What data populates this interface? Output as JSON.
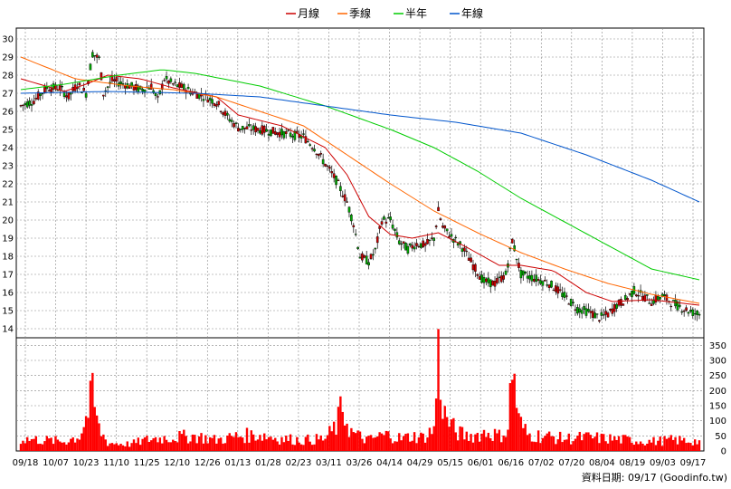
{
  "chart_data": {
    "type": "candlestick",
    "legend": {
      "placement": "top-center",
      "items": [
        {
          "label": "月線",
          "color": "#cc0000"
        },
        {
          "label": "季線",
          "color": "#ff6600"
        },
        {
          "label": "半年",
          "color": "#00cc00"
        },
        {
          "label": "年線",
          "color": "#0055cc"
        }
      ]
    },
    "price_axis": {
      "ticks": [
        14,
        15,
        16,
        17,
        18,
        19,
        20,
        21,
        22,
        23,
        24,
        25,
        26,
        27,
        28,
        29,
        30
      ],
      "ylim": [
        13.5,
        30.6
      ]
    },
    "volume_axis": {
      "ticks": [
        0,
        50,
        100,
        150,
        200,
        250,
        300,
        350
      ],
      "ylim": [
        0,
        375
      ]
    },
    "x_ticks": [
      "09/18",
      "10/07",
      "10/23",
      "11/10",
      "11/25",
      "12/10",
      "12/26",
      "01/13",
      "01/28",
      "02/23",
      "03/11",
      "03/26",
      "04/14",
      "04/29",
      "05/15",
      "06/01",
      "06/16",
      "07/02",
      "07/20",
      "08/04",
      "08/19",
      "09/03",
      "09/17"
    ],
    "grid": true,
    "colors": {
      "up": "#cc0000",
      "down": "#00aa00",
      "volume": "#ff0000",
      "grid": "#888888"
    },
    "price_anchors": [
      [
        0,
        26.3
      ],
      [
        6,
        26.6
      ],
      [
        12,
        27.3
      ],
      [
        18,
        27.3
      ],
      [
        22,
        26.8
      ],
      [
        26,
        27.5
      ],
      [
        30,
        27.0
      ],
      [
        33,
        29.2
      ],
      [
        36,
        28.9
      ],
      [
        38,
        27.0
      ],
      [
        42,
        27.7
      ],
      [
        48,
        27.5
      ],
      [
        55,
        27.2
      ],
      [
        60,
        27.4
      ],
      [
        63,
        26.6
      ],
      [
        66,
        27.8
      ],
      [
        70,
        27.5
      ],
      [
        75,
        27.3
      ],
      [
        80,
        27.0
      ],
      [
        85,
        26.8
      ],
      [
        90,
        26.5
      ],
      [
        95,
        25.7
      ],
      [
        100,
        25.1
      ],
      [
        110,
        25.0
      ],
      [
        120,
        24.8
      ],
      [
        130,
        24.6
      ],
      [
        135,
        24.0
      ],
      [
        140,
        23.1
      ],
      [
        145,
        22.2
      ],
      [
        150,
        21.0
      ],
      [
        153,
        19.8
      ],
      [
        156,
        18.0
      ],
      [
        160,
        17.7
      ],
      [
        163,
        18.3
      ],
      [
        166,
        20.0
      ],
      [
        170,
        20.0
      ],
      [
        174,
        18.8
      ],
      [
        178,
        18.4
      ],
      [
        182,
        18.7
      ],
      [
        186,
        18.6
      ],
      [
        190,
        19.0
      ],
      [
        192,
        20.5
      ],
      [
        194,
        19.6
      ],
      [
        198,
        19.1
      ],
      [
        203,
        18.5
      ],
      [
        208,
        17.5
      ],
      [
        213,
        16.6
      ],
      [
        218,
        16.5
      ],
      [
        223,
        17.0
      ],
      [
        226,
        18.9
      ],
      [
        230,
        17.0
      ],
      [
        236,
        16.8
      ],
      [
        243,
        16.5
      ],
      [
        250,
        15.8
      ],
      [
        256,
        15.1
      ],
      [
        262,
        14.9
      ],
      [
        266,
        14.6
      ],
      [
        270,
        14.8
      ],
      [
        274,
        15.3
      ],
      [
        278,
        15.6
      ],
      [
        282,
        16.1
      ],
      [
        286,
        15.8
      ],
      [
        290,
        15.5
      ],
      [
        295,
        15.8
      ],
      [
        300,
        15.4
      ],
      [
        305,
        15.1
      ],
      [
        309,
        14.9
      ],
      [
        312,
        14.8
      ]
    ],
    "volume_anchors": [
      [
        0,
        45
      ],
      [
        10,
        40
      ],
      [
        20,
        35
      ],
      [
        27,
        55
      ],
      [
        30,
        120
      ],
      [
        33,
        200
      ],
      [
        36,
        80
      ],
      [
        40,
        30
      ],
      [
        50,
        25
      ],
      [
        60,
        45
      ],
      [
        70,
        50
      ],
      [
        80,
        55
      ],
      [
        90,
        40
      ],
      [
        100,
        55
      ],
      [
        110,
        60
      ],
      [
        120,
        45
      ],
      [
        130,
        40
      ],
      [
        140,
        45
      ],
      [
        145,
        90
      ],
      [
        148,
        160
      ],
      [
        150,
        110
      ],
      [
        152,
        70
      ],
      [
        155,
        55
      ],
      [
        160,
        40
      ],
      [
        165,
        55
      ],
      [
        170,
        60
      ],
      [
        175,
        45
      ],
      [
        180,
        55
      ],
      [
        185,
        50
      ],
      [
        190,
        80
      ],
      [
        192,
        350
      ],
      [
        193,
        250
      ],
      [
        195,
        130
      ],
      [
        200,
        70
      ],
      [
        205,
        55
      ],
      [
        210,
        60
      ],
      [
        215,
        70
      ],
      [
        220,
        55
      ],
      [
        224,
        80
      ],
      [
        226,
        310
      ],
      [
        227,
        260
      ],
      [
        229,
        110
      ],
      [
        233,
        60
      ],
      [
        240,
        55
      ],
      [
        250,
        45
      ],
      [
        260,
        50
      ],
      [
        270,
        45
      ],
      [
        280,
        40
      ],
      [
        290,
        35
      ],
      [
        300,
        40
      ],
      [
        312,
        35
      ]
    ],
    "monthly_ma": [
      [
        0,
        27.8
      ],
      [
        20,
        27.1
      ],
      [
        30,
        27.5
      ],
      [
        40,
        28.0
      ],
      [
        55,
        27.8
      ],
      [
        70,
        27.3
      ],
      [
        90,
        26.8
      ],
      [
        100,
        25.8
      ],
      [
        120,
        25.2
      ],
      [
        140,
        24.0
      ],
      [
        150,
        22.5
      ],
      [
        160,
        20.2
      ],
      [
        170,
        19.2
      ],
      [
        180,
        19.0
      ],
      [
        192,
        19.3
      ],
      [
        205,
        18.5
      ],
      [
        220,
        17.5
      ],
      [
        230,
        17.5
      ],
      [
        245,
        17.2
      ],
      [
        260,
        16.0
      ],
      [
        272,
        15.5
      ],
      [
        290,
        15.6
      ],
      [
        312,
        15.3
      ]
    ],
    "quarterly_ma": [
      [
        0,
        29.0
      ],
      [
        25,
        27.8
      ],
      [
        50,
        27.4
      ],
      [
        70,
        27.2
      ],
      [
        90,
        26.8
      ],
      [
        110,
        26.0
      ],
      [
        130,
        25.2
      ],
      [
        150,
        23.6
      ],
      [
        170,
        22.0
      ],
      [
        190,
        20.5
      ],
      [
        210,
        19.3
      ],
      [
        230,
        18.2
      ],
      [
        250,
        17.3
      ],
      [
        270,
        16.5
      ],
      [
        290,
        15.9
      ],
      [
        312,
        15.4
      ]
    ],
    "halfyear_ma": [
      [
        0,
        27.2
      ],
      [
        20,
        27.5
      ],
      [
        45,
        28.0
      ],
      [
        65,
        28.3
      ],
      [
        80,
        28.1
      ],
      [
        110,
        27.4
      ],
      [
        140,
        26.3
      ],
      [
        170,
        25.0
      ],
      [
        190,
        24.0
      ],
      [
        210,
        22.7
      ],
      [
        230,
        21.2
      ],
      [
        250,
        19.9
      ],
      [
        270,
        18.6
      ],
      [
        290,
        17.3
      ],
      [
        312,
        16.7
      ]
    ],
    "yearly_ma": [
      [
        0,
        27.0
      ],
      [
        40,
        27.1
      ],
      [
        80,
        27.0
      ],
      [
        110,
        26.8
      ],
      [
        140,
        26.3
      ],
      [
        170,
        25.8
      ],
      [
        200,
        25.4
      ],
      [
        230,
        24.8
      ],
      [
        260,
        23.6
      ],
      [
        290,
        22.2
      ],
      [
        312,
        21.0
      ]
    ],
    "footer": "資料日期: 09/17 (Goodinfo.tw)"
  }
}
